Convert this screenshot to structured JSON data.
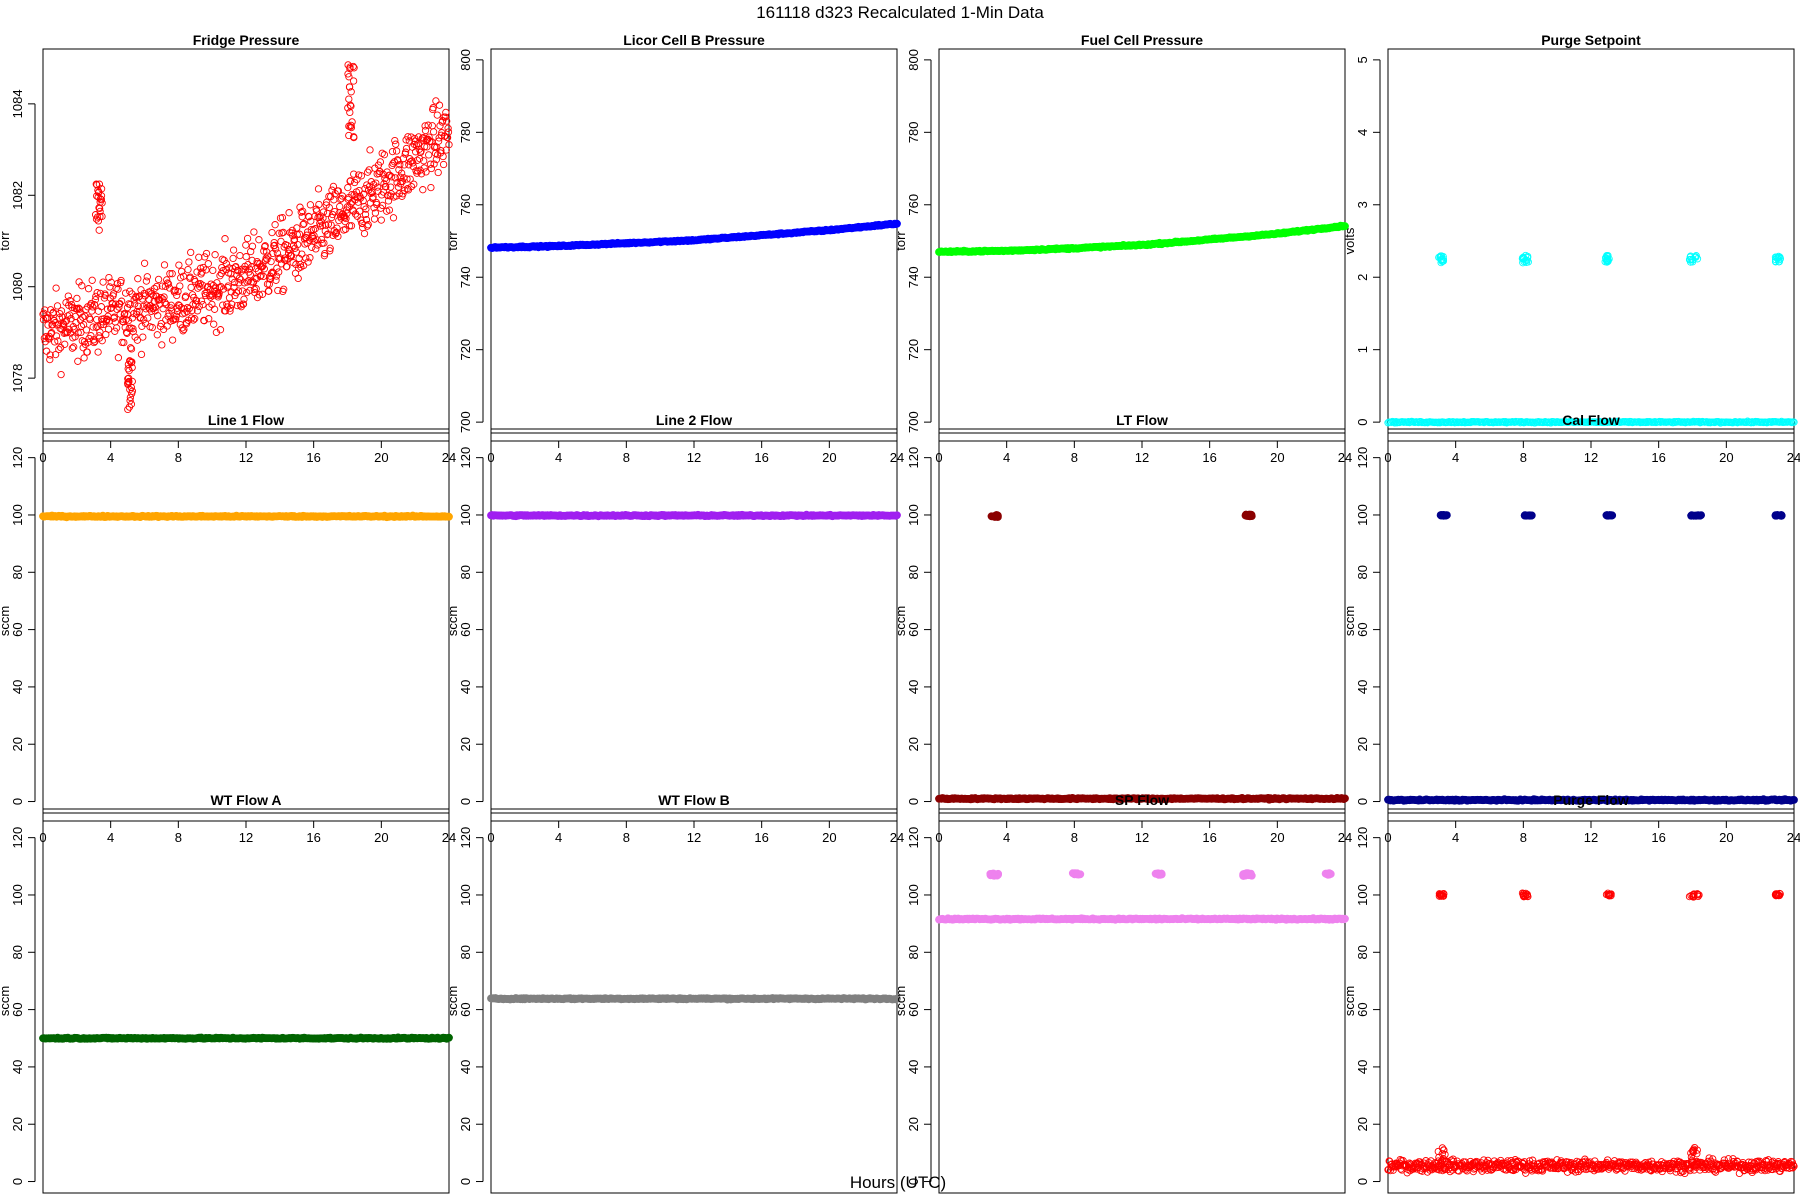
{
  "figure": {
    "title": "161118   d323   Recalculated 1-Min Data",
    "xlabel": "Hours (UTC)"
  },
  "chart_data": [
    {
      "type": "scatter",
      "title": "Fridge Pressure",
      "ylabel": "torr",
      "color": "#ff0000",
      "marker": "open-circle",
      "xlim": [
        0,
        24
      ],
      "ylim": [
        1076.8,
        1085.2
      ],
      "xticks": [
        0,
        4,
        8,
        12,
        16,
        20,
        24
      ],
      "yticks": [
        1078,
        1080,
        1082,
        1084
      ],
      "trend": [
        [
          0,
          1079.0
        ],
        [
          4,
          1079.4
        ],
        [
          8,
          1079.7
        ],
        [
          12,
          1080.2
        ],
        [
          16,
          1081.1
        ],
        [
          20,
          1082.2
        ],
        [
          24,
          1083.4
        ]
      ],
      "clusters": [
        [
          3.1,
          3.5,
          1081.2,
          1082.4
        ],
        [
          5.0,
          5.3,
          1077.2,
          1078.4
        ],
        [
          18.0,
          18.4,
          1083.2,
          1084.9
        ]
      ]
    },
    {
      "type": "scatter",
      "title": "Licor Cell B Pressure",
      "ylabel": "torr",
      "color": "#0000ff",
      "marker": "filled",
      "xlim": [
        0,
        24
      ],
      "ylim": [
        697,
        803
      ],
      "xticks": [
        0,
        4,
        8,
        12,
        16,
        20,
        24
      ],
      "yticks": [
        700,
        720,
        740,
        760,
        780,
        800
      ],
      "trend": [
        [
          0,
          748.2
        ],
        [
          4,
          748.6
        ],
        [
          8,
          749.4
        ],
        [
          12,
          750.2
        ],
        [
          16,
          751.6
        ],
        [
          20,
          753.0
        ],
        [
          24,
          754.8
        ]
      ],
      "clusters": []
    },
    {
      "type": "scatter",
      "title": "Fuel Cell Pressure",
      "ylabel": "torr",
      "color": "#00ff00",
      "marker": "filled",
      "xlim": [
        0,
        24
      ],
      "ylim": [
        697,
        803
      ],
      "xticks": [
        0,
        4,
        8,
        12,
        16,
        20,
        24
      ],
      "yticks": [
        700,
        720,
        740,
        760,
        780,
        800
      ],
      "trend": [
        [
          0,
          747.0
        ],
        [
          4,
          747.3
        ],
        [
          8,
          748.0
        ],
        [
          12,
          748.9
        ],
        [
          16,
          750.4
        ],
        [
          20,
          752.0
        ],
        [
          24,
          754.2
        ]
      ],
      "clusters": []
    },
    {
      "type": "scatter",
      "title": "Purge Setpoint",
      "ylabel": "volts",
      "color": "#00ffff",
      "marker": "open-circle",
      "xlim": [
        0,
        24
      ],
      "ylim": [
        -0.15,
        5.15
      ],
      "xticks": [
        0,
        4,
        8,
        12,
        16,
        20,
        24
      ],
      "yticks": [
        0,
        1,
        2,
        3,
        4,
        5
      ],
      "trend": [
        [
          0,
          0
        ],
        [
          24,
          0
        ]
      ],
      "clusters": [
        [
          3.0,
          3.3,
          2.2,
          2.3
        ],
        [
          7.9,
          8.3,
          2.2,
          2.3
        ],
        [
          12.8,
          13.1,
          2.2,
          2.3
        ],
        [
          17.8,
          18.3,
          2.2,
          2.3
        ],
        [
          22.9,
          23.2,
          2.2,
          2.3
        ]
      ]
    },
    {
      "type": "scatter",
      "title": "Line 1 Flow",
      "ylabel": "sccm",
      "color": "#ffa500",
      "marker": "filled",
      "xlim": [
        0,
        24
      ],
      "ylim": [
        -4,
        130
      ],
      "xticks": [
        0,
        4,
        8,
        12,
        16,
        20,
        24
      ],
      "yticks": [
        0,
        20,
        40,
        60,
        80,
        100,
        120
      ],
      "trend": [
        [
          0,
          99.5
        ],
        [
          24,
          99.5
        ]
      ],
      "clusters": []
    },
    {
      "type": "scatter",
      "title": "Line 2 Flow",
      "ylabel": "sccm",
      "color": "#a020f0",
      "marker": "filled",
      "xlim": [
        0,
        24
      ],
      "ylim": [
        -4,
        130
      ],
      "xticks": [
        0,
        4,
        8,
        12,
        16,
        20,
        24
      ],
      "yticks": [
        0,
        20,
        40,
        60,
        80,
        100,
        120
      ],
      "trend": [
        [
          0,
          99.8
        ],
        [
          24,
          99.8
        ]
      ],
      "clusters": []
    },
    {
      "type": "scatter",
      "title": "LT Flow",
      "ylabel": "sccm",
      "color": "#8b0000",
      "marker": "filled",
      "xlim": [
        0,
        24
      ],
      "ylim": [
        -4,
        130
      ],
      "xticks": [
        0,
        4,
        8,
        12,
        16,
        20,
        24
      ],
      "yticks": [
        0,
        20,
        40,
        60,
        80,
        100,
        120
      ],
      "trend": [
        [
          0,
          1.0
        ],
        [
          24,
          1.0
        ]
      ],
      "clusters": [
        [
          3.1,
          3.5,
          99.2,
          100.0
        ],
        [
          18.1,
          18.5,
          99.5,
          100.2
        ]
      ]
    },
    {
      "type": "scatter",
      "title": "Cal Flow",
      "ylabel": "sccm",
      "color": "#00008b",
      "marker": "filled",
      "xlim": [
        0,
        24
      ],
      "ylim": [
        -4,
        130
      ],
      "xticks": [
        0,
        4,
        8,
        12,
        16,
        20,
        24
      ],
      "yticks": [
        0,
        20,
        40,
        60,
        80,
        100,
        120
      ],
      "trend": [
        [
          0,
          0.5
        ],
        [
          24,
          0.5
        ]
      ],
      "clusters": [
        [
          3.1,
          3.5,
          99.7,
          100.0
        ],
        [
          8.0,
          8.5,
          99.7,
          100.0
        ],
        [
          12.9,
          13.3,
          99.7,
          100.0
        ],
        [
          17.9,
          18.6,
          99.7,
          100.0
        ],
        [
          22.9,
          23.3,
          99.7,
          100.0
        ]
      ]
    },
    {
      "type": "scatter",
      "title": "WT Flow A",
      "ylabel": "sccm",
      "color": "#006400",
      "marker": "filled",
      "xlim": [
        0,
        24
      ],
      "ylim": [
        -4,
        130
      ],
      "xticks": [
        0,
        4,
        8,
        12,
        16,
        20,
        24
      ],
      "yticks": [
        0,
        20,
        40,
        60,
        80,
        100,
        120
      ],
      "trend": [
        [
          0,
          50.0
        ],
        [
          24,
          50.0
        ]
      ],
      "clusters": []
    },
    {
      "type": "scatter",
      "title": "WT Flow B",
      "ylabel": "sccm",
      "color": "#808080",
      "marker": "filled",
      "xlim": [
        0,
        24
      ],
      "ylim": [
        -4,
        130
      ],
      "xticks": [
        0,
        4,
        8,
        12,
        16,
        20,
        24
      ],
      "yticks": [
        0,
        20,
        40,
        60,
        80,
        100,
        120
      ],
      "trend": [
        [
          0,
          63.8
        ],
        [
          24,
          63.8
        ]
      ],
      "clusters": []
    },
    {
      "type": "scatter",
      "title": "SP Flow",
      "ylabel": "sccm",
      "color": "#ee82ee",
      "marker": "filled",
      "xlim": [
        0,
        24
      ],
      "ylim": [
        -4,
        130
      ],
      "xticks": [
        0,
        4,
        8,
        12,
        16,
        20,
        24
      ],
      "yticks": [
        0,
        20,
        40,
        60,
        80,
        100,
        120
      ],
      "trend": [
        [
          0,
          91.6
        ],
        [
          24,
          91.6
        ]
      ],
      "clusters": [
        [
          3.0,
          3.5,
          106.5,
          107.5
        ],
        [
          7.9,
          8.4,
          107.0,
          107.6
        ],
        [
          12.8,
          13.2,
          107.0,
          107.6
        ],
        [
          17.9,
          18.5,
          106.6,
          107.6
        ],
        [
          22.8,
          23.2,
          107.0,
          107.6
        ]
      ]
    },
    {
      "type": "scatter",
      "title": "Purge Flow",
      "ylabel": "sccm",
      "color": "#ff0000",
      "marker": "open-circle",
      "xlim": [
        0,
        24
      ],
      "ylim": [
        -4,
        130
      ],
      "xticks": [
        0,
        4,
        8,
        12,
        16,
        20,
        24
      ],
      "yticks": [
        0,
        20,
        40,
        60,
        80,
        100,
        120
      ],
      "trend": [
        [
          0,
          5.5
        ],
        [
          24,
          5.5
        ]
      ],
      "clusters": [
        [
          3.0,
          3.3,
          99.5,
          100.5
        ],
        [
          7.9,
          8.3,
          99.3,
          100.8
        ],
        [
          12.9,
          13.2,
          99.6,
          100.6
        ],
        [
          17.8,
          18.4,
          99.2,
          100.6
        ],
        [
          22.9,
          23.2,
          99.6,
          100.6
        ]
      ]
    }
  ]
}
